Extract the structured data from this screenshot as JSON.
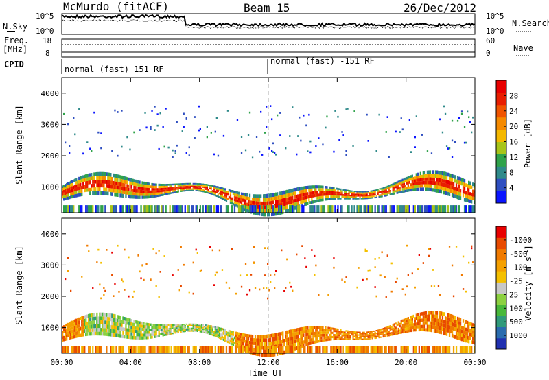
{
  "header": {
    "station": "McMurdo (fitACF)",
    "beam": "Beam 15",
    "date": "26/Dec/2012"
  },
  "summary_panel": {
    "nsky_label": "N.Sky",
    "nsearch_label": "N.Search",
    "left_ticks": [
      "10^5",
      "10^0"
    ],
    "right_ticks": [
      "10^5",
      "10^0"
    ],
    "freq_label_line1": "Freq.",
    "freq_label_line2": "[MHz]",
    "freq_ticks": [
      "18",
      "8"
    ],
    "nave_label": "Nave",
    "nave_ticks": [
      "60",
      "0"
    ],
    "cpid_label": "CPID",
    "cpid_segments": [
      "normal (fast) 151 RF",
      "normal (fast) -151 RF"
    ]
  },
  "chart_data": [
    {
      "type": "heatmap",
      "ylabel": "Slant Range [km]",
      "xlabel": "Time UT",
      "x_ticks": [
        "00:00",
        "04:00",
        "08:00",
        "12:00",
        "16:00",
        "20:00",
        "00:00"
      ],
      "y_ticks": [
        "1000",
        "2000",
        "3000",
        "4000"
      ],
      "ylim": [
        180,
        4500
      ],
      "colorbar": {
        "label": "Power [dB]",
        "ticks": [
          "4",
          "8",
          "12",
          "16",
          "20",
          "24",
          "28"
        ],
        "colors": [
          "#0a14ff",
          "#2e4ec0",
          "#2f8a8a",
          "#2fa24a",
          "#a8c418",
          "#f4b800",
          "#f58a00",
          "#f05400",
          "#e81e00",
          "#e80000"
        ]
      }
    },
    {
      "type": "heatmap",
      "ylabel": "Slant Range [km]",
      "xlabel": "Time UT",
      "x_ticks": [
        "00:00",
        "04:00",
        "08:00",
        "12:00",
        "16:00",
        "20:00",
        "00:00"
      ],
      "y_ticks": [
        "1000",
        "2000",
        "3000",
        "4000"
      ],
      "ylim": [
        180,
        4500
      ],
      "colorbar": {
        "label": "Velocity [m s",
        "label_sup": "-1",
        "label_end": "]",
        "ticks": [
          "1000",
          "500",
          "100",
          "25",
          "-25",
          "-100",
          "-500",
          "-1000"
        ],
        "colors": [
          "#2030b0",
          "#2a6cae",
          "#309a7a",
          "#48b83a",
          "#8cd040",
          "#c8c8c8",
          "#f4c000",
          "#f4a000",
          "#f07a00",
          "#e84a00",
          "#e80000"
        ]
      }
    }
  ]
}
